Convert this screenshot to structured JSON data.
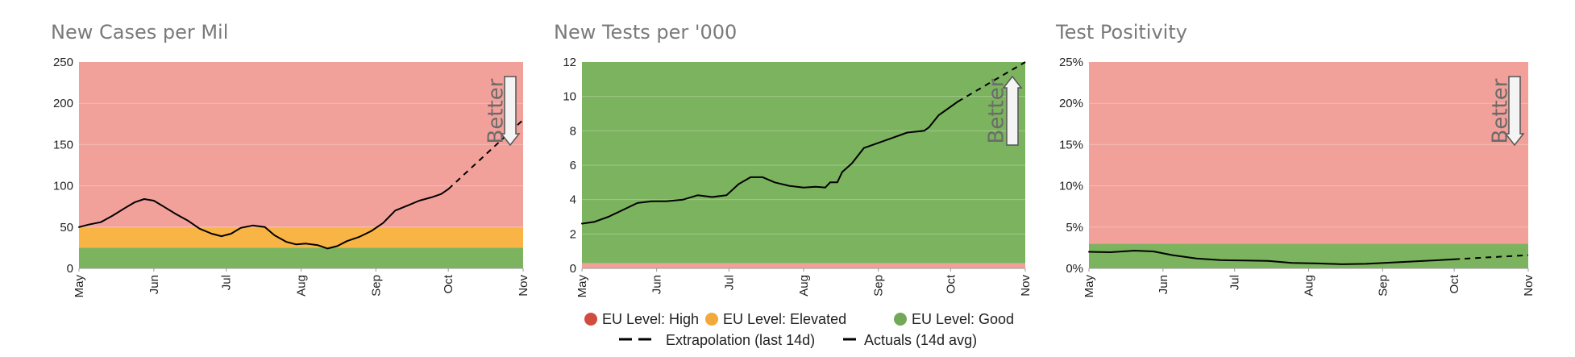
{
  "colors": {
    "high": "#f2a19a",
    "elevated": "#f8b445",
    "good": "#7cb35e",
    "high_marker": "#d24b3f",
    "elevated_marker": "#f0a93a",
    "good_marker": "#72a858",
    "gridline": "#d9d9d9",
    "line": "#000000"
  },
  "annotation": {
    "better_label": "Better"
  },
  "legend": {
    "items": [
      {
        "label": "EU Level: High",
        "color_key": "high_marker",
        "kind": "dot"
      },
      {
        "label": "EU Level: Elevated",
        "color_key": "elevated_marker",
        "kind": "dot"
      },
      {
        "label": "EU Level: Good",
        "color_key": "good_marker",
        "kind": "dot"
      },
      {
        "label": "Extrapolation (last 14d)",
        "kind": "dashed"
      },
      {
        "label": "Actuals (14d avg)",
        "kind": "solid"
      }
    ]
  },
  "chart_data": [
    {
      "type": "line",
      "title": "New Cases per Mil",
      "x_type": "date",
      "xlim": [
        "2020-05-01",
        "2020-11-01"
      ],
      "x_ticks": [
        "2020-05-01",
        "2020-06-01",
        "2020-07-01",
        "2020-08-01",
        "2020-09-01",
        "2020-10-01",
        "2020-11-01"
      ],
      "x_tick_labels": [
        "May",
        "Jun",
        "Jul",
        "Aug",
        "Sep",
        "Oct",
        "Nov"
      ],
      "ylim": [
        0,
        250
      ],
      "y_ticks": [
        0,
        50,
        100,
        150,
        200,
        250
      ],
      "y_tick_labels": [
        "0",
        "50",
        "100",
        "150",
        "200",
        "250"
      ],
      "bands": [
        {
          "level": "good",
          "from": 0,
          "to": 25
        },
        {
          "level": "elevated",
          "from": 25,
          "to": 50
        },
        {
          "level": "high",
          "from": 50,
          "to": 250
        }
      ],
      "better_direction": "down",
      "series": [
        {
          "kind": "actual",
          "points": [
            [
              "2020-05-01",
              50
            ],
            [
              "2020-05-05",
              53
            ],
            [
              "2020-05-10",
              56
            ],
            [
              "2020-05-15",
              64
            ],
            [
              "2020-05-20",
              73
            ],
            [
              "2020-05-24",
              80
            ],
            [
              "2020-05-28",
              84
            ],
            [
              "2020-06-01",
              82
            ],
            [
              "2020-06-05",
              75
            ],
            [
              "2020-06-10",
              66
            ],
            [
              "2020-06-15",
              58
            ],
            [
              "2020-06-20",
              48
            ],
            [
              "2020-06-25",
              42
            ],
            [
              "2020-06-29",
              39
            ],
            [
              "2020-07-03",
              42
            ],
            [
              "2020-07-07",
              49
            ],
            [
              "2020-07-12",
              52
            ],
            [
              "2020-07-17",
              50
            ],
            [
              "2020-07-21",
              40
            ],
            [
              "2020-07-26",
              32
            ],
            [
              "2020-07-30",
              29
            ],
            [
              "2020-08-03",
              30
            ],
            [
              "2020-08-08",
              28
            ],
            [
              "2020-08-12",
              24
            ],
            [
              "2020-08-16",
              27
            ],
            [
              "2020-08-20",
              33
            ],
            [
              "2020-08-25",
              38
            ],
            [
              "2020-08-30",
              45
            ],
            [
              "2020-09-04",
              55
            ],
            [
              "2020-09-09",
              70
            ],
            [
              "2020-09-14",
              76
            ],
            [
              "2020-09-19",
              82
            ],
            [
              "2020-09-24",
              86
            ],
            [
              "2020-09-28",
              90
            ],
            [
              "2020-10-01",
              96
            ]
          ]
        },
        {
          "kind": "extrapolation",
          "points": [
            [
              "2020-10-01",
              96
            ],
            [
              "2020-11-01",
              180
            ]
          ]
        }
      ]
    },
    {
      "type": "line",
      "title": "New Tests per '000",
      "x_type": "date",
      "xlim": [
        "2020-05-01",
        "2020-11-01"
      ],
      "x_ticks": [
        "2020-05-01",
        "2020-06-01",
        "2020-07-01",
        "2020-08-01",
        "2020-09-01",
        "2020-10-01",
        "2020-11-01"
      ],
      "x_tick_labels": [
        "May",
        "Jun",
        "Jul",
        "Aug",
        "Sep",
        "Oct",
        "Nov"
      ],
      "ylim": [
        0,
        12
      ],
      "y_ticks": [
        0,
        2,
        4,
        6,
        8,
        10,
        12
      ],
      "y_tick_labels": [
        "0",
        "2",
        "4",
        "6",
        "8",
        "10",
        "12"
      ],
      "bands": [
        {
          "level": "high",
          "from": 0,
          "to": 0.3
        },
        {
          "level": "good",
          "from": 0.3,
          "to": 12
        }
      ],
      "better_direction": "up",
      "series": [
        {
          "kind": "actual",
          "points": [
            [
              "2020-05-01",
              2.6
            ],
            [
              "2020-05-06",
              2.7
            ],
            [
              "2020-05-12",
              3.0
            ],
            [
              "2020-05-18",
              3.4
            ],
            [
              "2020-05-24",
              3.8
            ],
            [
              "2020-05-30",
              3.9
            ],
            [
              "2020-06-05",
              3.9
            ],
            [
              "2020-06-12",
              4.0
            ],
            [
              "2020-06-18",
              4.25
            ],
            [
              "2020-06-24",
              4.15
            ],
            [
              "2020-06-30",
              4.25
            ],
            [
              "2020-07-05",
              4.9
            ],
            [
              "2020-07-10",
              5.3
            ],
            [
              "2020-07-15",
              5.3
            ],
            [
              "2020-07-20",
              5.0
            ],
            [
              "2020-07-26",
              4.8
            ],
            [
              "2020-08-01",
              4.7
            ],
            [
              "2020-08-06",
              4.75
            ],
            [
              "2020-08-10",
              4.7
            ],
            [
              "2020-08-12",
              5.0
            ],
            [
              "2020-08-15",
              5.0
            ],
            [
              "2020-08-17",
              5.6
            ],
            [
              "2020-08-21",
              6.1
            ],
            [
              "2020-08-26",
              7.0
            ],
            [
              "2020-09-01",
              7.3
            ],
            [
              "2020-09-07",
              7.6
            ],
            [
              "2020-09-13",
              7.9
            ],
            [
              "2020-09-20",
              8.0
            ],
            [
              "2020-09-22",
              8.2
            ],
            [
              "2020-09-26",
              8.9
            ],
            [
              "2020-10-01",
              9.4
            ],
            [
              "2020-10-04",
              9.7
            ]
          ]
        },
        {
          "kind": "extrapolation",
          "points": [
            [
              "2020-10-04",
              9.7
            ],
            [
              "2020-11-01",
              12.0
            ]
          ]
        }
      ]
    },
    {
      "type": "line",
      "title": "Test Positivity",
      "x_type": "date",
      "xlim": [
        "2020-05-01",
        "2020-11-01"
      ],
      "x_ticks": [
        "2020-05-01",
        "2020-06-01",
        "2020-07-01",
        "2020-08-01",
        "2020-09-01",
        "2020-10-01",
        "2020-11-01"
      ],
      "x_tick_labels": [
        "May",
        "Jun",
        "Jul",
        "Aug",
        "Sep",
        "Oct",
        "Nov"
      ],
      "ylim": [
        0,
        25
      ],
      "y_ticks": [
        0,
        5,
        10,
        15,
        20,
        25
      ],
      "y_tick_labels": [
        "0%",
        "5%",
        "10%",
        "15%",
        "20%",
        "25%"
      ],
      "bands": [
        {
          "level": "good",
          "from": 0,
          "to": 3
        },
        {
          "level": "high",
          "from": 3,
          "to": 25
        }
      ],
      "better_direction": "down",
      "series": [
        {
          "kind": "actual",
          "points": [
            [
              "2020-05-01",
              2.0
            ],
            [
              "2020-05-10",
              1.95
            ],
            [
              "2020-05-20",
              2.15
            ],
            [
              "2020-05-28",
              2.05
            ],
            [
              "2020-06-05",
              1.6
            ],
            [
              "2020-06-15",
              1.2
            ],
            [
              "2020-06-25",
              1.0
            ],
            [
              "2020-07-05",
              0.95
            ],
            [
              "2020-07-15",
              0.9
            ],
            [
              "2020-07-25",
              0.65
            ],
            [
              "2020-08-05",
              0.6
            ],
            [
              "2020-08-15",
              0.5
            ],
            [
              "2020-08-25",
              0.55
            ],
            [
              "2020-09-05",
              0.7
            ],
            [
              "2020-09-15",
              0.85
            ],
            [
              "2020-09-25",
              1.0
            ],
            [
              "2020-10-01",
              1.1
            ]
          ]
        },
        {
          "kind": "extrapolation",
          "points": [
            [
              "2020-10-01",
              1.1
            ],
            [
              "2020-11-01",
              1.6
            ]
          ]
        }
      ]
    }
  ]
}
